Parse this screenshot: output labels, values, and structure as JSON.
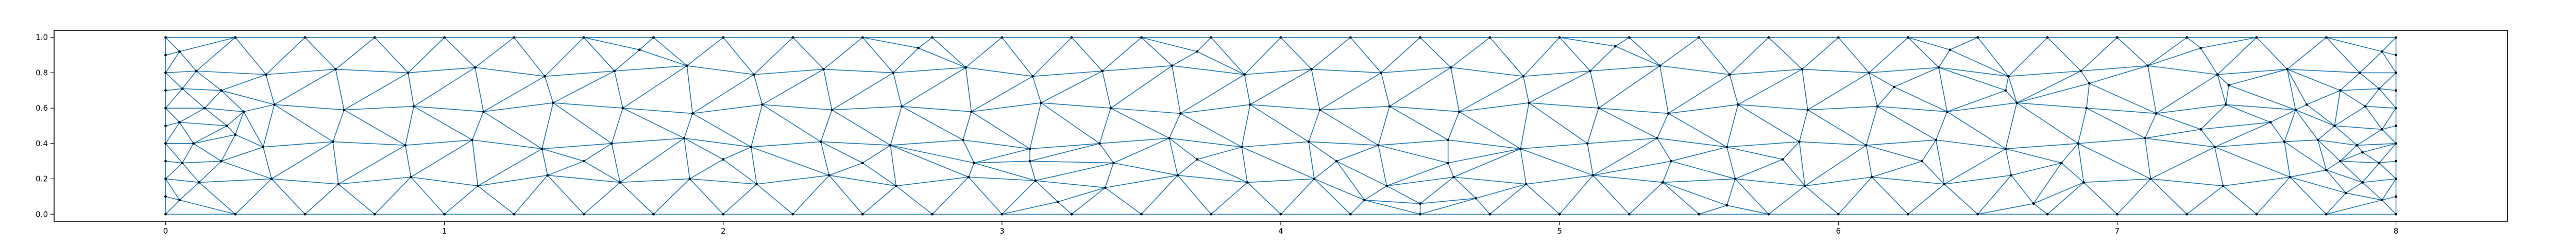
{
  "chart_data": {
    "type": "scatter",
    "title": "",
    "xlabel": "",
    "ylabel": "",
    "xlim": [
      -0.4,
      8.4
    ],
    "ylim": [
      -0.04,
      1.04
    ],
    "xticks": [
      "0",
      "1",
      "2",
      "3",
      "4",
      "5",
      "6",
      "7",
      "8"
    ],
    "yticks": [
      "0.0",
      "0.2",
      "0.4",
      "0.6",
      "0.8",
      "1.0"
    ],
    "grid": false,
    "legend": "none",
    "series_color": "#1f77b4",
    "marker_color": "#000000",
    "mesh_domain": {
      "x": [
        0,
        8
      ],
      "y": [
        0,
        1
      ]
    },
    "mesh_nodes": [
      [
        0,
        0
      ],
      [
        0.25,
        0
      ],
      [
        0.5,
        0
      ],
      [
        0.75,
        0
      ],
      [
        1,
        0
      ],
      [
        1.25,
        0
      ],
      [
        1.5,
        0
      ],
      [
        1.75,
        0
      ],
      [
        2,
        0
      ],
      [
        2.25,
        0
      ],
      [
        2.5,
        0
      ],
      [
        2.75,
        0
      ],
      [
        3,
        0
      ],
      [
        3.25,
        0
      ],
      [
        3.5,
        0
      ],
      [
        3.75,
        0
      ],
      [
        4,
        0
      ],
      [
        4.25,
        0
      ],
      [
        4.5,
        0
      ],
      [
        4.75,
        0
      ],
      [
        5,
        0
      ],
      [
        5.25,
        0
      ],
      [
        5.5,
        0
      ],
      [
        5.75,
        0
      ],
      [
        6,
        0
      ],
      [
        6.25,
        0
      ],
      [
        6.5,
        0
      ],
      [
        6.75,
        0
      ],
      [
        7,
        0
      ],
      [
        7.25,
        0
      ],
      [
        7.5,
        0
      ],
      [
        7.75,
        0
      ],
      [
        8,
        0
      ],
      [
        0,
        1
      ],
      [
        0.25,
        1
      ],
      [
        0.5,
        1
      ],
      [
        0.75,
        1
      ],
      [
        1,
        1
      ],
      [
        1.25,
        1
      ],
      [
        1.5,
        1
      ],
      [
        1.75,
        1
      ],
      [
        2,
        1
      ],
      [
        2.25,
        1
      ],
      [
        2.5,
        1
      ],
      [
        2.75,
        1
      ],
      [
        3,
        1
      ],
      [
        3.25,
        1
      ],
      [
        3.5,
        1
      ],
      [
        3.75,
        1
      ],
      [
        4,
        1
      ],
      [
        4.25,
        1
      ],
      [
        4.5,
        1
      ],
      [
        4.75,
        1
      ],
      [
        5,
        1
      ],
      [
        5.25,
        1
      ],
      [
        5.5,
        1
      ],
      [
        5.75,
        1
      ],
      [
        6,
        1
      ],
      [
        6.25,
        1
      ],
      [
        6.5,
        1
      ],
      [
        6.75,
        1
      ],
      [
        7,
        1
      ],
      [
        7.25,
        1
      ],
      [
        7.5,
        1
      ],
      [
        7.75,
        1
      ],
      [
        8,
        1
      ],
      [
        0,
        0.1
      ],
      [
        0,
        0.2
      ],
      [
        0,
        0.3
      ],
      [
        0,
        0.4
      ],
      [
        0,
        0.5
      ],
      [
        0,
        0.6
      ],
      [
        0,
        0.7
      ],
      [
        0,
        0.8
      ],
      [
        0,
        0.9
      ],
      [
        8,
        0.1
      ],
      [
        8,
        0.2
      ],
      [
        8,
        0.3
      ],
      [
        8,
        0.4
      ],
      [
        8,
        0.5
      ],
      [
        8,
        0.6
      ],
      [
        8,
        0.7
      ],
      [
        8,
        0.8
      ],
      [
        8,
        0.9
      ],
      [
        0.12,
        0.18
      ],
      [
        0.38,
        0.2
      ],
      [
        0.62,
        0.17
      ],
      [
        0.88,
        0.21
      ],
      [
        1.12,
        0.16
      ],
      [
        1.37,
        0.22
      ],
      [
        1.63,
        0.18
      ],
      [
        1.88,
        0.2
      ],
      [
        2.12,
        0.17
      ],
      [
        2.38,
        0.22
      ],
      [
        2.62,
        0.16
      ],
      [
        2.88,
        0.21
      ],
      [
        3.12,
        0.19
      ],
      [
        3.37,
        0.15
      ],
      [
        3.63,
        0.22
      ],
      [
        3.88,
        0.18
      ],
      [
        4.12,
        0.2
      ],
      [
        4.38,
        0.16
      ],
      [
        4.62,
        0.21
      ],
      [
        4.88,
        0.17
      ],
      [
        5.12,
        0.22
      ],
      [
        5.37,
        0.18
      ],
      [
        5.63,
        0.2
      ],
      [
        5.88,
        0.16
      ],
      [
        6.12,
        0.21
      ],
      [
        6.38,
        0.17
      ],
      [
        6.62,
        0.22
      ],
      [
        6.88,
        0.18
      ],
      [
        7.12,
        0.2
      ],
      [
        7.38,
        0.16
      ],
      [
        7.62,
        0.21
      ],
      [
        7.88,
        0.18
      ],
      [
        0.1,
        0.4
      ],
      [
        0.35,
        0.38
      ],
      [
        0.6,
        0.41
      ],
      [
        0.86,
        0.39
      ],
      [
        1.1,
        0.42
      ],
      [
        1.35,
        0.37
      ],
      [
        1.6,
        0.4
      ],
      [
        1.86,
        0.43
      ],
      [
        2.1,
        0.38
      ],
      [
        2.35,
        0.41
      ],
      [
        2.6,
        0.39
      ],
      [
        2.86,
        0.42
      ],
      [
        3.1,
        0.37
      ],
      [
        3.35,
        0.4
      ],
      [
        3.6,
        0.43
      ],
      [
        3.86,
        0.38
      ],
      [
        4.1,
        0.41
      ],
      [
        4.35,
        0.39
      ],
      [
        4.6,
        0.42
      ],
      [
        4.86,
        0.37
      ],
      [
        5.1,
        0.4
      ],
      [
        5.35,
        0.43
      ],
      [
        5.6,
        0.38
      ],
      [
        5.86,
        0.41
      ],
      [
        6.1,
        0.39
      ],
      [
        6.35,
        0.42
      ],
      [
        6.6,
        0.37
      ],
      [
        6.86,
        0.4
      ],
      [
        7.1,
        0.43
      ],
      [
        7.35,
        0.38
      ],
      [
        7.6,
        0.41
      ],
      [
        7.86,
        0.39
      ],
      [
        0.14,
        0.6
      ],
      [
        0.39,
        0.62
      ],
      [
        0.64,
        0.59
      ],
      [
        0.89,
        0.61
      ],
      [
        1.14,
        0.58
      ],
      [
        1.39,
        0.63
      ],
      [
        1.64,
        0.6
      ],
      [
        1.89,
        0.57
      ],
      [
        2.14,
        0.62
      ],
      [
        2.39,
        0.59
      ],
      [
        2.64,
        0.61
      ],
      [
        2.89,
        0.58
      ],
      [
        3.14,
        0.63
      ],
      [
        3.39,
        0.6
      ],
      [
        3.64,
        0.57
      ],
      [
        3.89,
        0.62
      ],
      [
        4.14,
        0.59
      ],
      [
        4.39,
        0.61
      ],
      [
        4.64,
        0.58
      ],
      [
        4.89,
        0.63
      ],
      [
        5.14,
        0.6
      ],
      [
        5.39,
        0.57
      ],
      [
        5.64,
        0.62
      ],
      [
        5.89,
        0.59
      ],
      [
        6.14,
        0.61
      ],
      [
        6.39,
        0.58
      ],
      [
        6.64,
        0.63
      ],
      [
        6.89,
        0.6
      ],
      [
        7.14,
        0.57
      ],
      [
        7.39,
        0.62
      ],
      [
        7.64,
        0.59
      ],
      [
        7.89,
        0.61
      ],
      [
        0.11,
        0.81
      ],
      [
        0.36,
        0.79
      ],
      [
        0.61,
        0.82
      ],
      [
        0.87,
        0.8
      ],
      [
        1.11,
        0.83
      ],
      [
        1.36,
        0.78
      ],
      [
        1.61,
        0.81
      ],
      [
        1.87,
        0.84
      ],
      [
        2.11,
        0.79
      ],
      [
        2.36,
        0.82
      ],
      [
        2.61,
        0.8
      ],
      [
        2.87,
        0.83
      ],
      [
        3.11,
        0.78
      ],
      [
        3.36,
        0.81
      ],
      [
        3.61,
        0.84
      ],
      [
        3.87,
        0.79
      ],
      [
        4.11,
        0.82
      ],
      [
        4.36,
        0.8
      ],
      [
        4.61,
        0.83
      ],
      [
        4.87,
        0.78
      ],
      [
        5.11,
        0.81
      ],
      [
        5.36,
        0.84
      ],
      [
        5.61,
        0.79
      ],
      [
        5.87,
        0.82
      ],
      [
        6.11,
        0.8
      ],
      [
        6.36,
        0.83
      ],
      [
        6.61,
        0.78
      ],
      [
        6.87,
        0.81
      ],
      [
        7.11,
        0.84
      ],
      [
        7.36,
        0.79
      ],
      [
        7.61,
        0.82
      ],
      [
        7.87,
        0.8
      ],
      [
        0.05,
        0.08
      ],
      [
        0.06,
        0.29
      ],
      [
        0.05,
        0.52
      ],
      [
        0.06,
        0.71
      ],
      [
        0.05,
        0.92
      ],
      [
        0.2,
        0.3
      ],
      [
        0.22,
        0.5
      ],
      [
        0.2,
        0.7
      ],
      [
        0.25,
        0.45
      ],
      [
        0.28,
        0.58
      ],
      [
        7.95,
        0.08
      ],
      [
        7.94,
        0.29
      ],
      [
        7.95,
        0.48
      ],
      [
        7.94,
        0.71
      ],
      [
        7.95,
        0.92
      ],
      [
        7.8,
        0.3
      ],
      [
        7.78,
        0.5
      ],
      [
        7.8,
        0.7
      ],
      [
        7.75,
        0.25
      ],
      [
        7.72,
        0.42
      ],
      [
        7.68,
        0.62
      ],
      [
        7.82,
        0.12
      ],
      [
        7.88,
        0.35
      ],
      [
        4.5,
        0.06
      ],
      [
        4.3,
        0.08
      ],
      [
        4.7,
        0.09
      ],
      [
        5.6,
        0.05
      ],
      [
        3.2,
        0.07
      ],
      [
        6.7,
        0.06
      ],
      [
        1.7,
        0.93
      ],
      [
        2.7,
        0.94
      ],
      [
        5.2,
        0.95
      ],
      [
        6.4,
        0.93
      ],
      [
        7.3,
        0.94
      ],
      [
        3.7,
        0.92
      ],
      [
        6.2,
        0.72
      ],
      [
        6.6,
        0.7
      ],
      [
        6.9,
        0.74
      ],
      [
        7.4,
        0.73
      ],
      [
        7.55,
        0.52
      ],
      [
        7.3,
        0.48
      ],
      [
        2.9,
        0.29
      ],
      [
        3.1,
        0.3
      ],
      [
        3.4,
        0.29
      ],
      [
        3.7,
        0.31
      ],
      [
        4.2,
        0.3
      ],
      [
        4.6,
        0.29
      ],
      [
        5.4,
        0.3
      ],
      [
        5.8,
        0.31
      ],
      [
        6.3,
        0.3
      ],
      [
        6.8,
        0.29
      ],
      [
        1.5,
        0.3
      ],
      [
        2.0,
        0.31
      ],
      [
        2.5,
        0.29
      ]
    ]
  }
}
